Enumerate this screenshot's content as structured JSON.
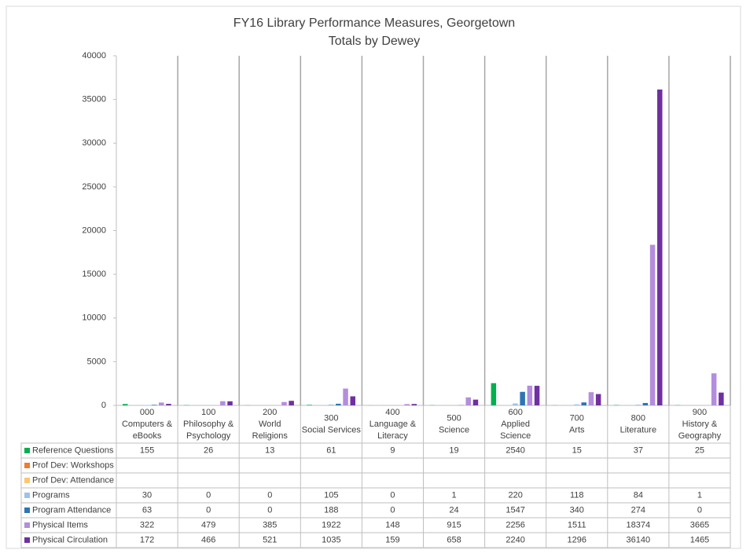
{
  "chart_data": {
    "type": "bar",
    "title": "FY16 Library Performance Measures, Georgetown",
    "subtitle": "Totals by Dewey",
    "categories": [
      [
        "000",
        "Computers &",
        "eBooks"
      ],
      [
        "100",
        "Philosophy &",
        "Psychology"
      ],
      [
        "200",
        "World",
        "Religions"
      ],
      [
        "300",
        "Social Services"
      ],
      [
        "400",
        "Language &",
        "Literacy"
      ],
      [
        "500",
        "Science"
      ],
      [
        "600",
        "Applied",
        "Science"
      ],
      [
        "700",
        "Arts"
      ],
      [
        "800",
        "Literature"
      ],
      [
        "900",
        "History &",
        "Geography"
      ]
    ],
    "series": [
      {
        "name": "Reference Questions",
        "color": "#00b050",
        "values": [
          155,
          26,
          13,
          61,
          9,
          19,
          2540,
          15,
          37,
          25
        ]
      },
      {
        "name": "Prof Dev: Workshops",
        "color": "#ed7d31",
        "values": [
          null,
          null,
          null,
          null,
          null,
          null,
          null,
          null,
          null,
          null
        ]
      },
      {
        "name": "Prof Dev: Attendance",
        "color": "#ffc670",
        "values": [
          null,
          null,
          null,
          null,
          null,
          null,
          null,
          null,
          null,
          null
        ]
      },
      {
        "name": "Programs",
        "color": "#9dc3e6",
        "values": [
          30,
          0,
          0,
          105,
          0,
          1,
          220,
          118,
          84,
          1
        ]
      },
      {
        "name": "Program Attendance",
        "color": "#2e75b6",
        "values": [
          63,
          0,
          0,
          188,
          0,
          24,
          1547,
          340,
          274,
          0
        ]
      },
      {
        "name": "Physical Items",
        "color": "#b48ddd",
        "values": [
          322,
          479,
          385,
          1922,
          148,
          915,
          2256,
          1511,
          18374,
          3665
        ]
      },
      {
        "name": "Physical Circulation",
        "color": "#7030a0",
        "values": [
          172,
          466,
          521,
          1035,
          159,
          658,
          2240,
          1296,
          36140,
          1465
        ]
      }
    ],
    "ylim": [
      0,
      40000
    ],
    "yticks": [
      0,
      5000,
      10000,
      15000,
      20000,
      25000,
      30000,
      35000,
      40000
    ]
  }
}
